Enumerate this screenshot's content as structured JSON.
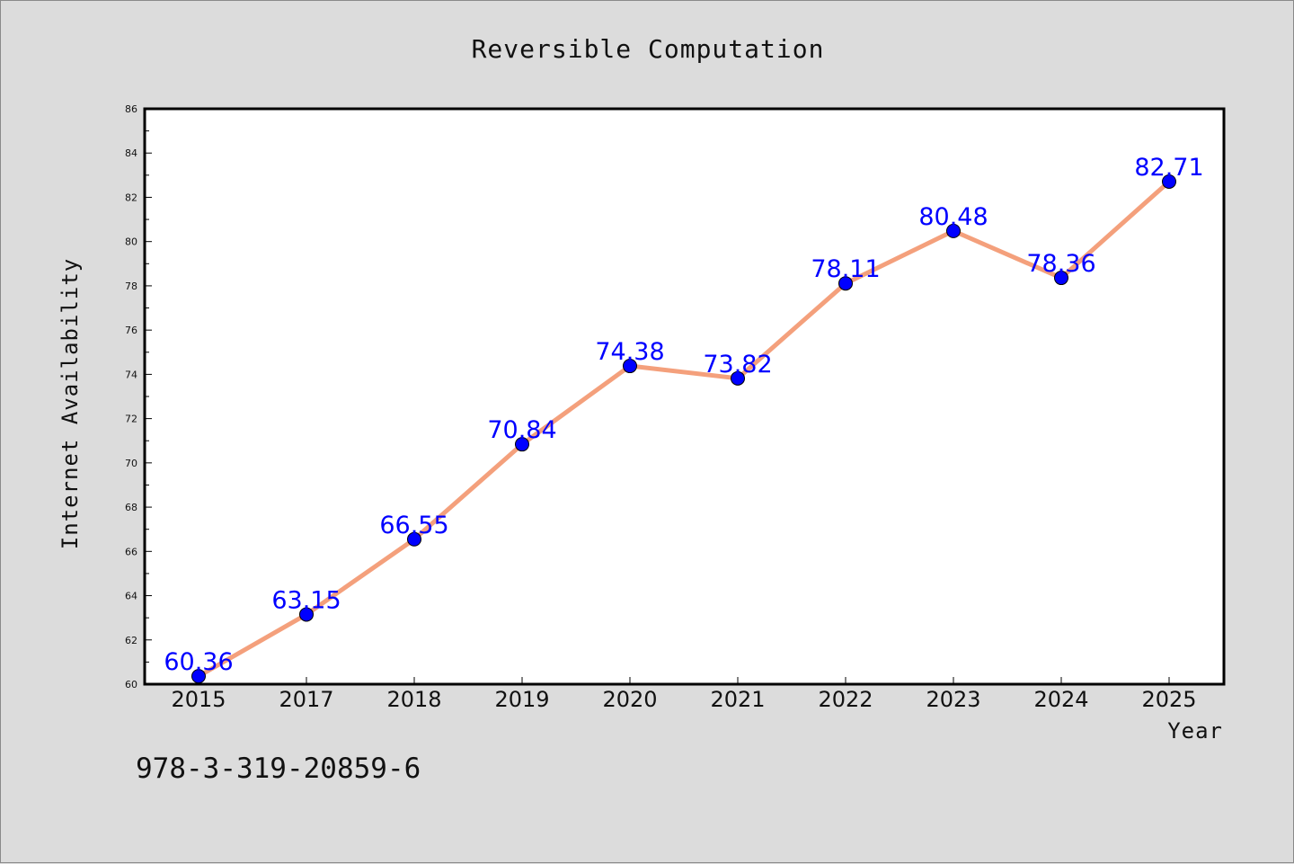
{
  "chart_data": {
    "type": "line",
    "title": "Reversible Computation",
    "xlabel": "Year",
    "ylabel": "Internet Availability",
    "categories": [
      "2015",
      "2017",
      "2018",
      "2019",
      "2020",
      "2021",
      "2022",
      "2023",
      "2024",
      "2025"
    ],
    "series": [
      {
        "values": [
          60.36,
          63.15,
          66.55,
          70.84,
          74.38,
          73.82,
          78.11,
          80.48,
          78.36,
          82.71
        ],
        "labels": [
          "60.36",
          "63.15",
          "66.55",
          "70.84",
          "74.38",
          "73.82",
          "78.11",
          "80.48",
          "78.36",
          "82.71"
        ],
        "line_color": "#f4a07c",
        "marker_color": "#0000ff"
      }
    ],
    "ylim": [
      60,
      86
    ],
    "yticks": [
      "60",
      "62",
      "64",
      "66",
      "68",
      "70",
      "72",
      "74",
      "76",
      "78",
      "80",
      "82",
      "84",
      "86"
    ],
    "grid": false,
    "legend": "none"
  },
  "caption": "978-3-319-20859-6",
  "colors": {
    "background": "#dcdcdc",
    "plot_area": "#ffffff",
    "line": "#f4a07c",
    "marker": "#0000ff",
    "data_label": "#0000ff"
  }
}
